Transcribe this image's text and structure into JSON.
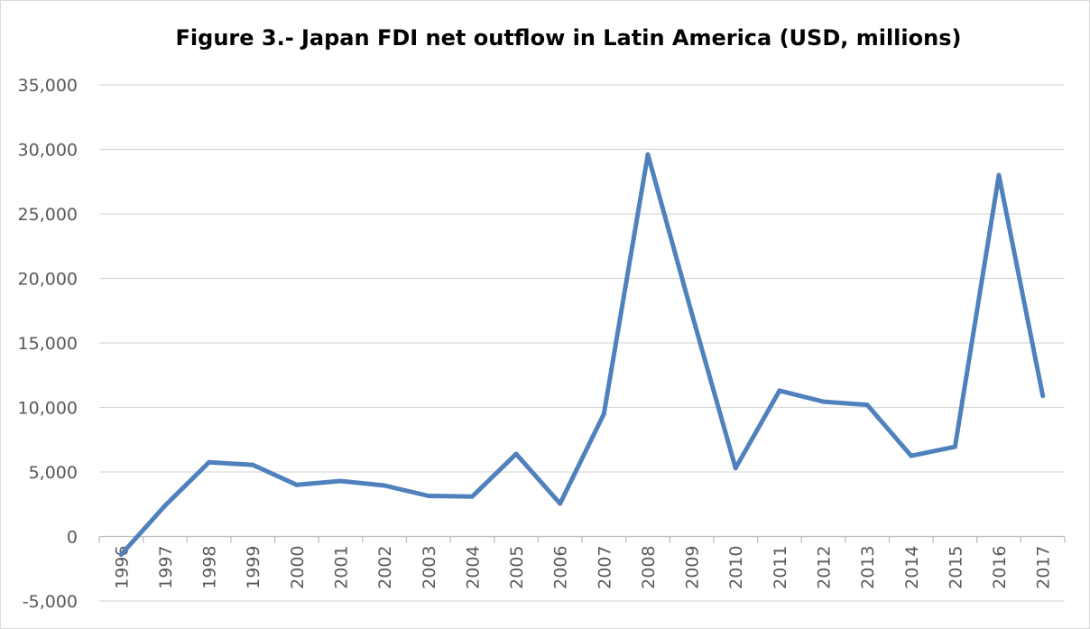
{
  "chart_data": {
    "type": "line",
    "title": "Figure 3.- Japan FDI net outflow in Latin America (USD, millions)",
    "xlabel": "",
    "ylabel": "",
    "ylim": [
      -5000,
      35000
    ],
    "yticks": [
      -5000,
      0,
      5000,
      10000,
      15000,
      20000,
      25000,
      30000,
      35000
    ],
    "ytick_labels": [
      "-5,000",
      "0",
      "5,000",
      "10,000",
      "15,000",
      "20,000",
      "25,000",
      "30,000",
      "35,000"
    ],
    "grid": true,
    "legend": "none",
    "categories": [
      "1996",
      "1997",
      "1998",
      "1999",
      "2000",
      "2001",
      "2002",
      "2003",
      "2004",
      "2005",
      "2006",
      "2007",
      "2008",
      "2009",
      "2010",
      "2011",
      "2012",
      "2013",
      "2014",
      "2015",
      "2016",
      "2017"
    ],
    "series": [
      {
        "color": "#4f81bd",
        "values": [
          -1400,
          2400,
          5750,
          5550,
          4000,
          4300,
          3950,
          3150,
          3100,
          6400,
          2550,
          9500,
          29600,
          17300,
          5300,
          11300,
          10450,
          10200,
          6250,
          6950,
          28000,
          10900
        ]
      }
    ]
  }
}
